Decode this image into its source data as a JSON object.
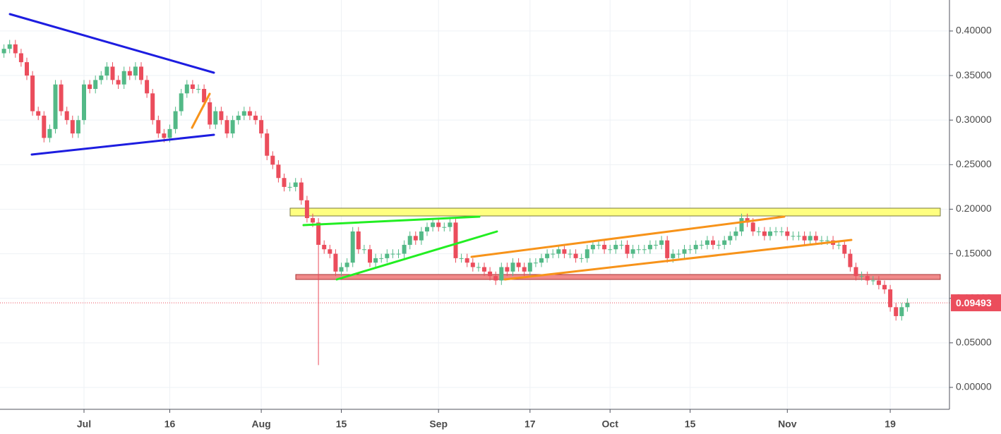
{
  "chart_data": {
    "type": "candlestick",
    "x": [
      "Jun 17",
      "Jun 18",
      "Jun 19",
      "Jun 20",
      "Jun 21",
      "Jun 22",
      "Jun 23",
      "Jun 24",
      "Jun 25",
      "Jun 26",
      "Jun 27",
      "Jun 28",
      "Jun 29",
      "Jun 30",
      "Jul 1",
      "Jul 2",
      "Jul 3",
      "Jul 4",
      "Jul 5",
      "Jul 6",
      "Jul 7",
      "Jul 8",
      "Jul 9",
      "Jul 10",
      "Jul 11",
      "Jul 12",
      "Jul 13",
      "Jul 14",
      "Jul 15",
      "Jul 16",
      "Jul 17",
      "Jul 18",
      "Jul 19",
      "Jul 20",
      "Jul 21",
      "Jul 22",
      "Jul 23",
      "Jul 24",
      "Jul 25",
      "Jul 26",
      "Jul 27",
      "Jul 28",
      "Jul 29",
      "Jul 30",
      "Jul 31",
      "Aug 1",
      "Aug 2",
      "Aug 3",
      "Aug 4",
      "Aug 5",
      "Aug 6",
      "Aug 7",
      "Aug 8",
      "Aug 9",
      "Aug 10",
      "Aug 11",
      "Aug 12",
      "Aug 13",
      "Aug 14",
      "Aug 15",
      "Aug 16",
      "Aug 17",
      "Aug 18",
      "Aug 19",
      "Aug 20",
      "Aug 21",
      "Aug 22",
      "Aug 23",
      "Aug 24",
      "Aug 25",
      "Aug 26",
      "Aug 27",
      "Aug 28",
      "Aug 29",
      "Aug 30",
      "Aug 31",
      "Sep 1",
      "Sep 2",
      "Sep 3",
      "Sep 4",
      "Sep 5",
      "Sep 6",
      "Sep 7",
      "Sep 8",
      "Sep 9",
      "Sep 10",
      "Sep 11",
      "Sep 12",
      "Sep 13",
      "Sep 14",
      "Sep 15",
      "Sep 16",
      "Sep 17",
      "Sep 18",
      "Sep 19",
      "Sep 20",
      "Sep 21",
      "Sep 22",
      "Sep 23",
      "Sep 24",
      "Sep 25",
      "Sep 26",
      "Sep 27",
      "Sep 28",
      "Sep 29",
      "Sep 30",
      "Oct 1",
      "Oct 2",
      "Oct 3",
      "Oct 4",
      "Oct 5",
      "Oct 6",
      "Oct 7",
      "Oct 8",
      "Oct 9",
      "Oct 10",
      "Oct 11",
      "Oct 12",
      "Oct 13",
      "Oct 14",
      "Oct 15",
      "Oct 16",
      "Oct 17",
      "Oct 18",
      "Oct 19",
      "Oct 20",
      "Oct 21",
      "Oct 22",
      "Oct 23",
      "Oct 24",
      "Oct 25",
      "Oct 26",
      "Oct 27",
      "Oct 28",
      "Oct 29",
      "Oct 30",
      "Oct 31",
      "Nov 1",
      "Nov 2",
      "Nov 3",
      "Nov 4",
      "Nov 5",
      "Nov 6",
      "Nov 7",
      "Nov 8",
      "Nov 9",
      "Nov 10",
      "Nov 11",
      "Nov 12",
      "Nov 13",
      "Nov 14",
      "Nov 15",
      "Nov 16",
      "Nov 17",
      "Nov 18",
      "Nov 19",
      "Nov 20",
      "Nov 21",
      "Nov 22"
    ],
    "open": [
      0.375,
      0.38,
      0.385,
      0.375,
      0.365,
      0.35,
      0.31,
      0.305,
      0.28,
      0.29,
      0.34,
      0.31,
      0.3,
      0.285,
      0.3,
      0.34,
      0.335,
      0.345,
      0.35,
      0.36,
      0.345,
      0.34,
      0.355,
      0.35,
      0.36,
      0.345,
      0.33,
      0.3,
      0.285,
      0.28,
      0.29,
      0.31,
      0.33,
      0.34,
      0.335,
      0.335,
      0.32,
      0.295,
      0.31,
      0.3,
      0.285,
      0.3,
      0.305,
      0.31,
      0.305,
      0.3,
      0.285,
      0.26,
      0.25,
      0.235,
      0.225,
      0.225,
      0.23,
      0.21,
      0.19,
      0.185,
      0.16,
      0.155,
      0.15,
      0.13,
      0.135,
      0.14,
      0.175,
      0.155,
      0.155,
      0.14,
      0.145,
      0.145,
      0.15,
      0.15,
      0.15,
      0.16,
      0.17,
      0.165,
      0.175,
      0.18,
      0.185,
      0.18,
      0.18,
      0.185,
      0.145,
      0.145,
      0.14,
      0.135,
      0.135,
      0.13,
      0.125,
      0.12,
      0.135,
      0.13,
      0.14,
      0.135,
      0.13,
      0.14,
      0.14,
      0.145,
      0.15,
      0.15,
      0.155,
      0.15,
      0.15,
      0.145,
      0.145,
      0.155,
      0.16,
      0.16,
      0.155,
      0.155,
      0.16,
      0.16,
      0.15,
      0.155,
      0.155,
      0.155,
      0.16,
      0.16,
      0.165,
      0.145,
      0.15,
      0.15,
      0.155,
      0.155,
      0.16,
      0.16,
      0.165,
      0.16,
      0.16,
      0.165,
      0.17,
      0.175,
      0.19,
      0.185,
      0.175,
      0.175,
      0.17,
      0.175,
      0.175,
      0.175,
      0.17,
      0.17,
      0.17,
      0.165,
      0.17,
      0.165,
      0.165,
      0.165,
      0.16,
      0.16,
      0.15,
      0.135,
      0.125,
      0.125,
      0.12,
      0.12,
      0.115,
      0.11,
      0.09,
      0.08,
      0.09
    ],
    "high": [
      0.385,
      0.39,
      0.39,
      0.38,
      0.37,
      0.355,
      0.315,
      0.31,
      0.295,
      0.345,
      0.345,
      0.315,
      0.305,
      0.305,
      0.345,
      0.345,
      0.35,
      0.355,
      0.365,
      0.365,
      0.35,
      0.36,
      0.36,
      0.365,
      0.365,
      0.35,
      0.335,
      0.305,
      0.29,
      0.295,
      0.315,
      0.335,
      0.345,
      0.345,
      0.34,
      0.34,
      0.325,
      0.315,
      0.315,
      0.305,
      0.305,
      0.31,
      0.315,
      0.315,
      0.31,
      0.305,
      0.29,
      0.265,
      0.255,
      0.24,
      0.23,
      0.235,
      0.235,
      0.215,
      0.195,
      0.19,
      0.165,
      0.16,
      0.155,
      0.14,
      0.145,
      0.18,
      0.18,
      0.16,
      0.16,
      0.15,
      0.15,
      0.155,
      0.155,
      0.155,
      0.165,
      0.175,
      0.175,
      0.18,
      0.185,
      0.19,
      0.19,
      0.185,
      0.19,
      0.19,
      0.15,
      0.15,
      0.145,
      0.14,
      0.14,
      0.135,
      0.13,
      0.14,
      0.14,
      0.145,
      0.145,
      0.14,
      0.145,
      0.145,
      0.15,
      0.155,
      0.155,
      0.16,
      0.16,
      0.155,
      0.155,
      0.15,
      0.16,
      0.165,
      0.165,
      0.165,
      0.16,
      0.165,
      0.165,
      0.165,
      0.16,
      0.16,
      0.16,
      0.165,
      0.165,
      0.17,
      0.17,
      0.155,
      0.155,
      0.16,
      0.16,
      0.165,
      0.165,
      0.17,
      0.17,
      0.165,
      0.17,
      0.175,
      0.18,
      0.195,
      0.195,
      0.19,
      0.18,
      0.18,
      0.18,
      0.18,
      0.18,
      0.18,
      0.175,
      0.175,
      0.175,
      0.175,
      0.175,
      0.17,
      0.17,
      0.17,
      0.165,
      0.165,
      0.155,
      0.14,
      0.13,
      0.13,
      0.125,
      0.125,
      0.12,
      0.115,
      0.095,
      0.095,
      0.1
    ],
    "low": [
      0.37,
      0.375,
      0.37,
      0.36,
      0.345,
      0.305,
      0.3,
      0.275,
      0.275,
      0.285,
      0.305,
      0.295,
      0.28,
      0.28,
      0.295,
      0.33,
      0.33,
      0.34,
      0.345,
      0.34,
      0.335,
      0.335,
      0.345,
      0.345,
      0.34,
      0.325,
      0.295,
      0.28,
      0.275,
      0.275,
      0.285,
      0.305,
      0.325,
      0.33,
      0.33,
      0.315,
      0.29,
      0.29,
      0.295,
      0.28,
      0.28,
      0.295,
      0.3,
      0.3,
      0.295,
      0.28,
      0.255,
      0.245,
      0.23,
      0.22,
      0.22,
      0.22,
      0.205,
      0.185,
      0.18,
      0.025,
      0.15,
      0.145,
      0.125,
      0.125,
      0.13,
      0.135,
      0.15,
      0.15,
      0.135,
      0.135,
      0.14,
      0.14,
      0.145,
      0.145,
      0.145,
      0.155,
      0.16,
      0.16,
      0.17,
      0.175,
      0.175,
      0.175,
      0.175,
      0.14,
      0.14,
      0.135,
      0.13,
      0.13,
      0.125,
      0.12,
      0.115,
      0.115,
      0.125,
      0.125,
      0.13,
      0.125,
      0.125,
      0.135,
      0.135,
      0.14,
      0.145,
      0.145,
      0.145,
      0.145,
      0.14,
      0.14,
      0.14,
      0.15,
      0.155,
      0.15,
      0.15,
      0.15,
      0.155,
      0.145,
      0.145,
      0.15,
      0.15,
      0.15,
      0.155,
      0.155,
      0.14,
      0.14,
      0.145,
      0.145,
      0.15,
      0.15,
      0.155,
      0.155,
      0.155,
      0.155,
      0.155,
      0.16,
      0.165,
      0.17,
      0.18,
      0.17,
      0.17,
      0.165,
      0.165,
      0.17,
      0.17,
      0.165,
      0.165,
      0.165,
      0.16,
      0.16,
      0.16,
      0.16,
      0.16,
      0.155,
      0.155,
      0.145,
      0.13,
      0.12,
      0.12,
      0.115,
      0.115,
      0.11,
      0.105,
      0.085,
      0.075,
      0.075,
      0.085
    ],
    "close": [
      0.38,
      0.385,
      0.375,
      0.365,
      0.35,
      0.31,
      0.305,
      0.28,
      0.29,
      0.34,
      0.31,
      0.3,
      0.285,
      0.3,
      0.34,
      0.335,
      0.345,
      0.35,
      0.36,
      0.345,
      0.34,
      0.355,
      0.35,
      0.36,
      0.345,
      0.33,
      0.3,
      0.285,
      0.28,
      0.29,
      0.31,
      0.33,
      0.34,
      0.335,
      0.335,
      0.32,
      0.295,
      0.31,
      0.3,
      0.285,
      0.3,
      0.305,
      0.31,
      0.305,
      0.3,
      0.285,
      0.26,
      0.25,
      0.235,
      0.225,
      0.225,
      0.23,
      0.21,
      0.19,
      0.185,
      0.16,
      0.155,
      0.15,
      0.13,
      0.135,
      0.14,
      0.175,
      0.155,
      0.155,
      0.14,
      0.145,
      0.145,
      0.15,
      0.15,
      0.15,
      0.16,
      0.17,
      0.165,
      0.175,
      0.18,
      0.185,
      0.18,
      0.18,
      0.185,
      0.145,
      0.145,
      0.14,
      0.135,
      0.135,
      0.13,
      0.125,
      0.12,
      0.135,
      0.13,
      0.14,
      0.135,
      0.13,
      0.14,
      0.14,
      0.145,
      0.15,
      0.15,
      0.155,
      0.15,
      0.15,
      0.145,
      0.145,
      0.155,
      0.16,
      0.16,
      0.155,
      0.155,
      0.16,
      0.16,
      0.15,
      0.155,
      0.155,
      0.155,
      0.16,
      0.16,
      0.165,
      0.145,
      0.15,
      0.15,
      0.155,
      0.155,
      0.16,
      0.16,
      0.165,
      0.16,
      0.16,
      0.165,
      0.17,
      0.175,
      0.19,
      0.185,
      0.175,
      0.175,
      0.17,
      0.175,
      0.175,
      0.175,
      0.17,
      0.17,
      0.17,
      0.165,
      0.17,
      0.165,
      0.165,
      0.165,
      0.16,
      0.16,
      0.15,
      0.135,
      0.125,
      0.125,
      0.12,
      0.12,
      0.115,
      0.11,
      0.09,
      0.08,
      0.09,
      0.09493
    ],
    "up_color": "#53b987",
    "down_color": "#eb4d5c",
    "ylim": [
      -0.0246,
      0.4348
    ],
    "yticks": [
      {
        "value": 0,
        "label": "0.00000"
      },
      {
        "value": 0.05,
        "label": "0.05000"
      },
      {
        "value": 0.1,
        "label": "0.10000"
      },
      {
        "value": 0.15,
        "label": "0.15000"
      },
      {
        "value": 0.2,
        "label": "0.20000"
      },
      {
        "value": 0.25,
        "label": "0.25000"
      },
      {
        "value": 0.3,
        "label": "0.30000"
      },
      {
        "value": 0.35,
        "label": "0.35000"
      },
      {
        "value": 0.4,
        "label": "0.40000"
      }
    ],
    "xticks": [
      {
        "value": "Jul 1",
        "label": "Jul"
      },
      {
        "value": "Jul 16",
        "label": "16"
      },
      {
        "value": "Aug 1",
        "label": "Aug"
      },
      {
        "value": "Aug 15",
        "label": "15"
      },
      {
        "value": "Sep 1",
        "label": "Sep"
      },
      {
        "value": "Sep 17",
        "label": "17"
      },
      {
        "value": "Oct 1",
        "label": "Oct"
      },
      {
        "value": "Oct 15",
        "label": "15"
      },
      {
        "value": "Nov 1",
        "label": "Nov"
      },
      {
        "value": "Nov 19",
        "label": "19"
      }
    ],
    "grid": true,
    "last_price": 0.09493,
    "last_price_color": "#eb4d5c"
  }
}
